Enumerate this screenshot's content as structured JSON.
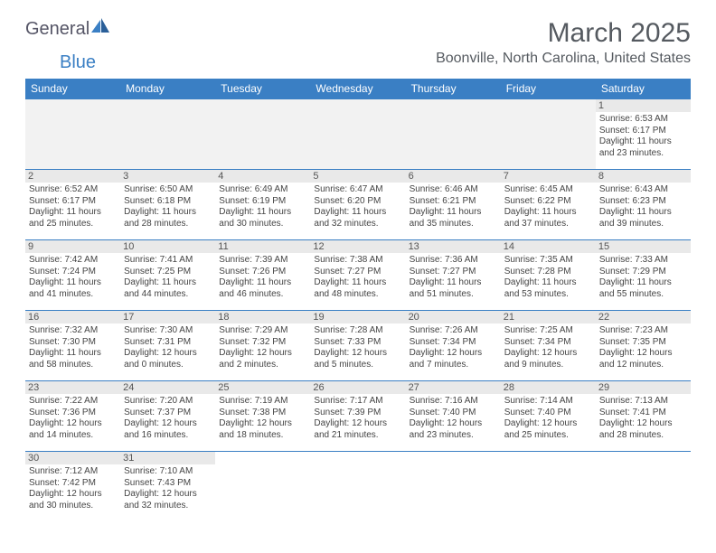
{
  "logo": {
    "text_general": "General",
    "text_blue": "Blue"
  },
  "title": "March 2025",
  "location": "Boonville, North Carolina, United States",
  "colors": {
    "header_bg": "#3a7fc4",
    "header_fg": "#ffffff",
    "grid_line": "#3a7fc4",
    "daynum_bg": "#e9e9e9",
    "text": "#444444"
  },
  "weekdays": [
    "Sunday",
    "Monday",
    "Tuesday",
    "Wednesday",
    "Thursday",
    "Friday",
    "Saturday"
  ],
  "grid": [
    [
      null,
      null,
      null,
      null,
      null,
      null,
      {
        "n": "1",
        "sr": "6:53 AM",
        "ss": "6:17 PM",
        "dl": "11 hours and 23 minutes."
      }
    ],
    [
      {
        "n": "2",
        "sr": "6:52 AM",
        "ss": "6:17 PM",
        "dl": "11 hours and 25 minutes."
      },
      {
        "n": "3",
        "sr": "6:50 AM",
        "ss": "6:18 PM",
        "dl": "11 hours and 28 minutes."
      },
      {
        "n": "4",
        "sr": "6:49 AM",
        "ss": "6:19 PM",
        "dl": "11 hours and 30 minutes."
      },
      {
        "n": "5",
        "sr": "6:47 AM",
        "ss": "6:20 PM",
        "dl": "11 hours and 32 minutes."
      },
      {
        "n": "6",
        "sr": "6:46 AM",
        "ss": "6:21 PM",
        "dl": "11 hours and 35 minutes."
      },
      {
        "n": "7",
        "sr": "6:45 AM",
        "ss": "6:22 PM",
        "dl": "11 hours and 37 minutes."
      },
      {
        "n": "8",
        "sr": "6:43 AM",
        "ss": "6:23 PM",
        "dl": "11 hours and 39 minutes."
      }
    ],
    [
      {
        "n": "9",
        "sr": "7:42 AM",
        "ss": "7:24 PM",
        "dl": "11 hours and 41 minutes."
      },
      {
        "n": "10",
        "sr": "7:41 AM",
        "ss": "7:25 PM",
        "dl": "11 hours and 44 minutes."
      },
      {
        "n": "11",
        "sr": "7:39 AM",
        "ss": "7:26 PM",
        "dl": "11 hours and 46 minutes."
      },
      {
        "n": "12",
        "sr": "7:38 AM",
        "ss": "7:27 PM",
        "dl": "11 hours and 48 minutes."
      },
      {
        "n": "13",
        "sr": "7:36 AM",
        "ss": "7:27 PM",
        "dl": "11 hours and 51 minutes."
      },
      {
        "n": "14",
        "sr": "7:35 AM",
        "ss": "7:28 PM",
        "dl": "11 hours and 53 minutes."
      },
      {
        "n": "15",
        "sr": "7:33 AM",
        "ss": "7:29 PM",
        "dl": "11 hours and 55 minutes."
      }
    ],
    [
      {
        "n": "16",
        "sr": "7:32 AM",
        "ss": "7:30 PM",
        "dl": "11 hours and 58 minutes."
      },
      {
        "n": "17",
        "sr": "7:30 AM",
        "ss": "7:31 PM",
        "dl": "12 hours and 0 minutes."
      },
      {
        "n": "18",
        "sr": "7:29 AM",
        "ss": "7:32 PM",
        "dl": "12 hours and 2 minutes."
      },
      {
        "n": "19",
        "sr": "7:28 AM",
        "ss": "7:33 PM",
        "dl": "12 hours and 5 minutes."
      },
      {
        "n": "20",
        "sr": "7:26 AM",
        "ss": "7:34 PM",
        "dl": "12 hours and 7 minutes."
      },
      {
        "n": "21",
        "sr": "7:25 AM",
        "ss": "7:34 PM",
        "dl": "12 hours and 9 minutes."
      },
      {
        "n": "22",
        "sr": "7:23 AM",
        "ss": "7:35 PM",
        "dl": "12 hours and 12 minutes."
      }
    ],
    [
      {
        "n": "23",
        "sr": "7:22 AM",
        "ss": "7:36 PM",
        "dl": "12 hours and 14 minutes."
      },
      {
        "n": "24",
        "sr": "7:20 AM",
        "ss": "7:37 PM",
        "dl": "12 hours and 16 minutes."
      },
      {
        "n": "25",
        "sr": "7:19 AM",
        "ss": "7:38 PM",
        "dl": "12 hours and 18 minutes."
      },
      {
        "n": "26",
        "sr": "7:17 AM",
        "ss": "7:39 PM",
        "dl": "12 hours and 21 minutes."
      },
      {
        "n": "27",
        "sr": "7:16 AM",
        "ss": "7:40 PM",
        "dl": "12 hours and 23 minutes."
      },
      {
        "n": "28",
        "sr": "7:14 AM",
        "ss": "7:40 PM",
        "dl": "12 hours and 25 minutes."
      },
      {
        "n": "29",
        "sr": "7:13 AM",
        "ss": "7:41 PM",
        "dl": "12 hours and 28 minutes."
      }
    ],
    [
      {
        "n": "30",
        "sr": "7:12 AM",
        "ss": "7:42 PM",
        "dl": "12 hours and 30 minutes."
      },
      {
        "n": "31",
        "sr": "7:10 AM",
        "ss": "7:43 PM",
        "dl": "12 hours and 32 minutes."
      },
      null,
      null,
      null,
      null,
      null
    ]
  ],
  "labels": {
    "sunrise": "Sunrise:",
    "sunset": "Sunset:",
    "daylight": "Daylight:"
  }
}
